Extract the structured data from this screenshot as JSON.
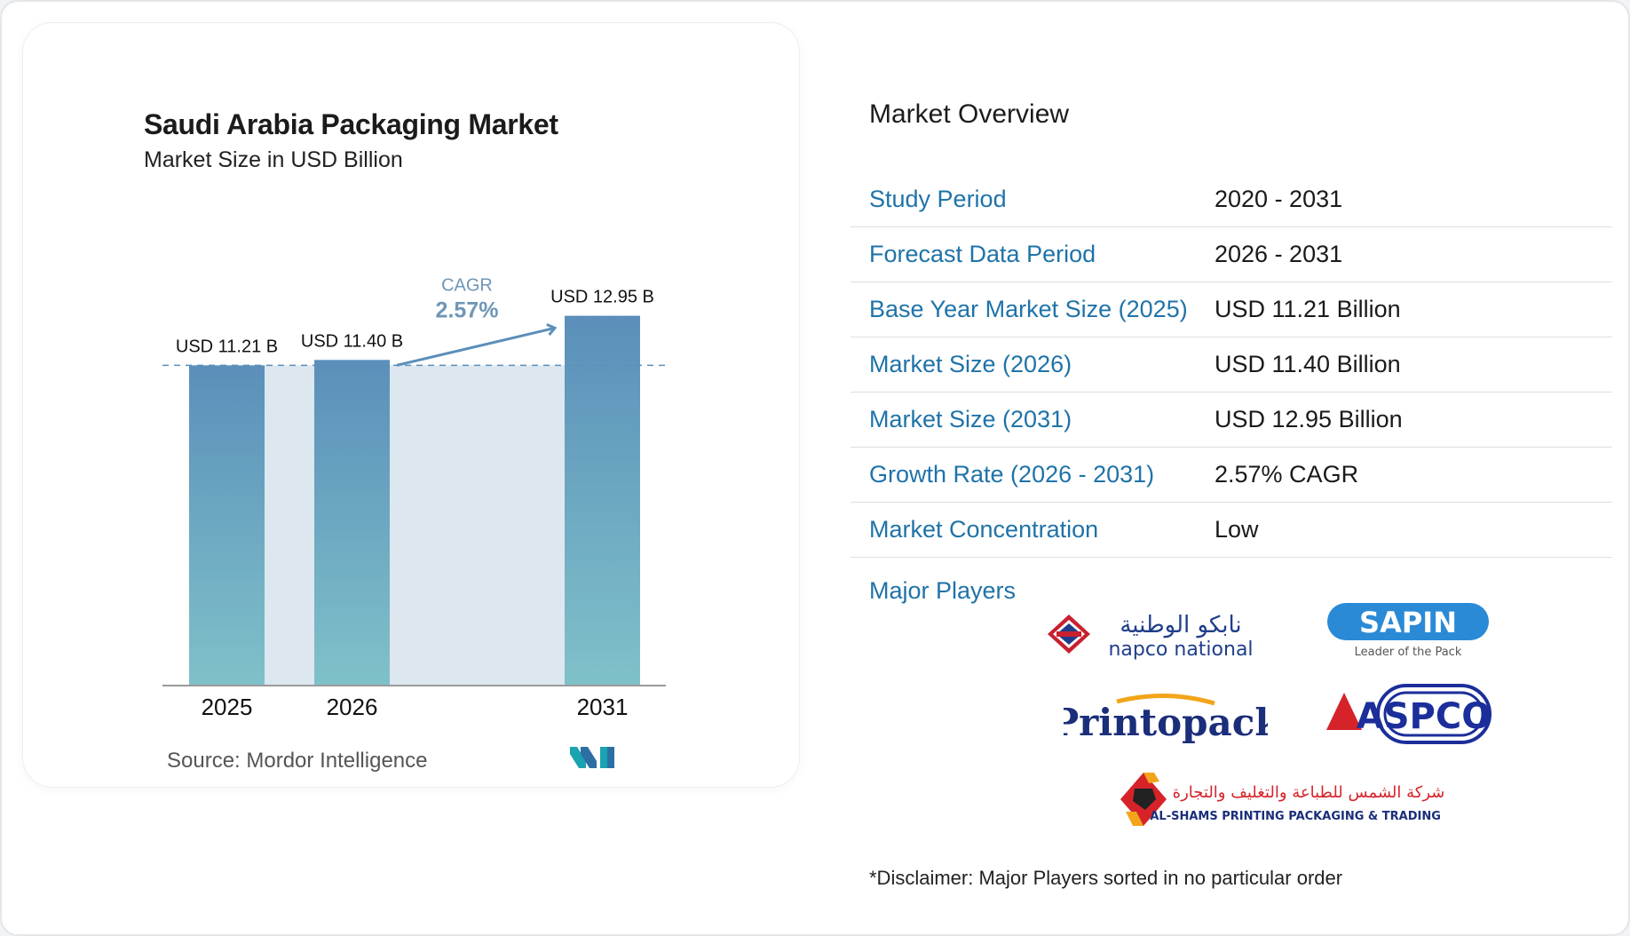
{
  "chart_data": {
    "type": "bar",
    "title": "Saudi Arabia Packaging Market",
    "subtitle": "Market Size in USD Billion",
    "categories": [
      "2025",
      "2026",
      "2031"
    ],
    "values": [
      11.21,
      11.4,
      12.95
    ],
    "data_labels": [
      "USD 11.21 B",
      "USD 11.40 B",
      "USD 12.95 B"
    ],
    "annotation": {
      "label": "CAGR",
      "value": "2.57%"
    },
    "grid": false,
    "colors": {
      "bar_top": "#5b8fba",
      "bar_bottom": "#7fc1c9",
      "band": "#dde7f0",
      "reference_line": "#5b8fba"
    }
  },
  "source": "Source:  Mordor Intelligence",
  "overview": {
    "title": "Market Overview",
    "rows": [
      {
        "label": "Study Period",
        "value": "2020 - 2031"
      },
      {
        "label": "Forecast Data Period",
        "value": "2026 - 2031"
      },
      {
        "label": "Base Year Market Size (2025)",
        "value": "USD 11.21 Billion"
      },
      {
        "label": "Market Size (2026)",
        "value": "USD 11.40 Billion"
      },
      {
        "label": "Market Size (2031)",
        "value": "USD 12.95 Billion"
      },
      {
        "label": "Growth Rate (2026 - 2031)",
        "value": "2.57% CAGR"
      },
      {
        "label": "Market Concentration",
        "value": "Low"
      }
    ]
  },
  "players": {
    "label": "Major Players",
    "logos": {
      "napco_ar": "نابكو الوطنية",
      "napco_en": "napco national",
      "sapin": "SAPIN",
      "sapin_tag": "Leader of the Pack",
      "printopack": "Printopack",
      "aspco": "ASPCO",
      "alshams_ar": "شركة الشمس للطباعة والتغليف والتجارة",
      "alshams_en": "AL-SHAMS PRINTING PACKAGING & TRADING CO."
    }
  },
  "disclaimer": "*Disclaimer: Major Players sorted in no particular order",
  "colors": {
    "accent_label": "#1f73a8",
    "brand_teal": "#1aa3b0"
  }
}
